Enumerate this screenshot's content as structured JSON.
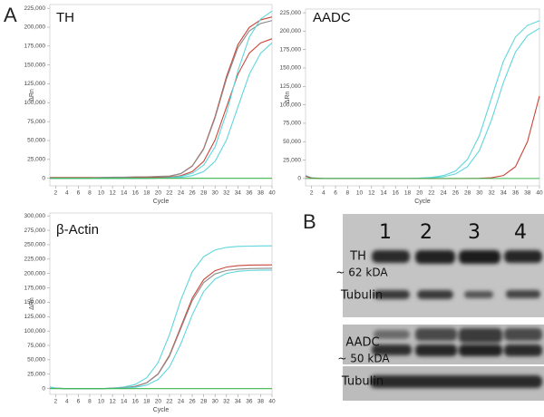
{
  "chart_data": [
    {
      "type": "line",
      "title": "TH",
      "xlabel": "Cycle",
      "ylabel": "ΔRn",
      "grid": false,
      "x": [
        1,
        2,
        4,
        6,
        8,
        10,
        12,
        14,
        16,
        18,
        20,
        22,
        24,
        26,
        28,
        30,
        32,
        34,
        36,
        38,
        40
      ],
      "xlim": [
        1,
        40
      ],
      "xticks": [
        2,
        4,
        6,
        8,
        10,
        12,
        14,
        16,
        18,
        20,
        22,
        24,
        26,
        28,
        30,
        32,
        34,
        36,
        38,
        40
      ],
      "ylim": [
        -10000,
        230000
      ],
      "yticks": [
        0,
        {
          "value": 25000,
          "label": "25,000"
        },
        {
          "value": 50000,
          "label": "50,000"
        },
        {
          "value": 75000,
          "label": "75,000"
        },
        {
          "value": 100000,
          "label": "100,000"
        },
        {
          "value": 125000,
          "label": "125,000"
        },
        {
          "value": 150000,
          "label": "150,000"
        },
        {
          "value": 175000,
          "label": "175,000"
        },
        {
          "value": 200000,
          "label": "200,000"
        },
        {
          "value": 225000,
          "label": "225,000"
        }
      ],
      "series": [
        {
          "color": "#c8473a",
          "values": [
            1000,
            1000,
            1000,
            1000,
            1000,
            1000,
            1000,
            1000,
            1000,
            1000,
            1500,
            2400,
            6300,
            16400,
            39300,
            81600,
            134400,
            176700,
            199600,
            209700,
            213600
          ]
        },
        {
          "color": "#8c8c8c",
          "values": [
            500,
            500,
            500,
            500,
            500,
            1000,
            1500,
            1500,
            2000,
            2000,
            2500,
            3000,
            6100,
            16000,
            38400,
            79800,
            131200,
            172600,
            195000,
            204900,
            208700
          ]
        },
        {
          "color": "#c8473a",
          "values": [
            0,
            0,
            0,
            0,
            0,
            0,
            0,
            0,
            0,
            0,
            500,
            1300,
            3400,
            8800,
            22400,
            50600,
            94000,
            137400,
            165600,
            179200,
            184600
          ]
        },
        {
          "color": "#5fd6dc",
          "values": [
            0,
            0,
            0,
            0,
            0,
            0,
            0,
            0,
            0,
            0,
            300,
            900,
            2500,
            6600,
            17300,
            41500,
            86200,
            141800,
            186500,
            210700,
            221400
          ]
        },
        {
          "color": "#5fd6dc",
          "values": [
            0,
            0,
            0,
            0,
            0,
            0,
            0,
            0,
            0,
            0,
            200,
            500,
            1300,
            3400,
            8800,
            22400,
            50600,
            94000,
            137400,
            165600,
            179200
          ]
        },
        {
          "color": "#3cb44b",
          "values": [
            0,
            0,
            0,
            0,
            0,
            0,
            0,
            0,
            0,
            0,
            0,
            0,
            0,
            0,
            0,
            0,
            0,
            0,
            0,
            0,
            0
          ]
        }
      ]
    },
    {
      "type": "line",
      "title": "AADC",
      "xlabel": "Cycle",
      "ylabel": "ΔRn",
      "grid": false,
      "x": [
        1,
        2,
        4,
        6,
        8,
        10,
        12,
        14,
        16,
        18,
        20,
        22,
        24,
        26,
        28,
        30,
        32,
        34,
        36,
        38,
        40
      ],
      "xlim": [
        1,
        40
      ],
      "xticks": [
        2,
        4,
        6,
        8,
        10,
        12,
        14,
        16,
        18,
        20,
        22,
        24,
        26,
        28,
        30,
        32,
        34,
        36,
        38,
        40
      ],
      "ylim": [
        -10000,
        230000
      ],
      "yticks": [
        0,
        {
          "value": 25000,
          "label": "25,000"
        },
        {
          "value": 50000,
          "label": "50,000"
        },
        {
          "value": 75000,
          "label": "75,000"
        },
        {
          "value": 100000,
          "label": "100,000"
        },
        {
          "value": 125000,
          "label": "125,000"
        },
        {
          "value": 150000,
          "label": "150,000"
        },
        {
          "value": 175000,
          "label": "175,000"
        },
        {
          "value": 200000,
          "label": "200,000"
        },
        {
          "value": 225000,
          "label": "225,000"
        }
      ],
      "series": [
        {
          "color": "#5fd6dc",
          "values": [
            4000,
            1000,
            0,
            0,
            0,
            0,
            0,
            0,
            0,
            0,
            500,
            1500,
            3900,
            10200,
            25900,
            58600,
            109000,
            159400,
            192100,
            207800,
            214100
          ]
        },
        {
          "color": "#5fd6dc",
          "values": [
            3000,
            500,
            0,
            0,
            0,
            0,
            0,
            0,
            0,
            0,
            300,
            800,
            2300,
            6100,
            16000,
            38200,
            79400,
            130600,
            171800,
            194000,
            203900
          ]
        },
        {
          "color": "#c8473a",
          "values": [
            3000,
            500,
            0,
            0,
            0,
            0,
            0,
            0,
            0,
            0,
            0,
            0,
            0,
            0,
            0,
            300,
            1000,
            4000,
            16000,
            50000,
            112000
          ]
        },
        {
          "color": "#3cb44b",
          "values": [
            0,
            0,
            0,
            0,
            0,
            0,
            0,
            0,
            0,
            0,
            0,
            0,
            0,
            0,
            0,
            0,
            0,
            0,
            0,
            0,
            0
          ]
        }
      ]
    },
    {
      "type": "line",
      "title": "β-Actin",
      "xlabel": "Cycle",
      "ylabel": "ΔRn",
      "grid": false,
      "x": [
        1,
        2,
        4,
        6,
        8,
        10,
        12,
        14,
        16,
        18,
        20,
        22,
        24,
        26,
        28,
        30,
        32,
        34,
        36,
        38,
        40
      ],
      "xlim": [
        1,
        40
      ],
      "xticks": [
        2,
        4,
        6,
        8,
        10,
        12,
        14,
        16,
        18,
        20,
        22,
        24,
        26,
        28,
        30,
        32,
        34,
        36,
        38,
        40
      ],
      "ylim": [
        -10000,
        305000
      ],
      "yticks": [
        0,
        {
          "value": 25000,
          "label": "25,000"
        },
        {
          "value": 50000,
          "label": "50,000"
        },
        {
          "value": 75000,
          "label": "75,000"
        },
        {
          "value": 100000,
          "label": "100,000"
        },
        {
          "value": 125000,
          "label": "125,000"
        },
        {
          "value": 150000,
          "label": "150,000"
        },
        {
          "value": 175000,
          "label": "175,000"
        },
        {
          "value": 200000,
          "label": "200,000"
        },
        {
          "value": 225000,
          "label": "225,000"
        },
        {
          "value": 250000,
          "label": "250,000"
        },
        {
          "value": 275000,
          "label": "275,000"
        },
        {
          "value": 300000,
          "label": "300,000"
        }
      ],
      "series": [
        {
          "color": "#5fd6dc",
          "values": [
            3000,
            1000,
            0,
            0,
            0,
            0,
            1000,
            2700,
            7200,
            18800,
            45100,
            93700,
            154300,
            202900,
            229200,
            240800,
            245300,
            247000,
            247500,
            247800,
            248000
          ]
        },
        {
          "color": "#c8473a",
          "values": [
            1000,
            500,
            0,
            0,
            0,
            0,
            500,
            1400,
            3900,
            10100,
            25600,
            57800,
            107500,
            157200,
            189400,
            204900,
            211100,
            213500,
            214500,
            214800,
            215000
          ]
        },
        {
          "color": "#8c8c8c",
          "values": [
            1000,
            500,
            0,
            0,
            0,
            0,
            500,
            1400,
            3800,
            9800,
            24900,
            56200,
            104500,
            152800,
            184100,
            199200,
            205200,
            207500,
            208500,
            208800,
            209000
          ]
        },
        {
          "color": "#5fd6dc",
          "values": [
            1000,
            500,
            0,
            0,
            0,
            0,
            300,
            800,
            2300,
            6000,
            15700,
            37500,
            77900,
            128100,
            168500,
            190300,
            200000,
            203700,
            205200,
            205600,
            205800
          ]
        },
        {
          "color": "#3cb44b",
          "values": [
            0,
            0,
            0,
            0,
            0,
            0,
            0,
            0,
            0,
            0,
            0,
            0,
            0,
            0,
            0,
            0,
            0,
            0,
            0,
            0,
            0
          ]
        }
      ]
    }
  ],
  "figure": {
    "panel_labels": [
      "A",
      "B"
    ],
    "blot": {
      "lanes": [
        "1",
        "2",
        "3",
        "4"
      ],
      "rows": [
        "TH",
        "~ 62 kDA",
        "Tubulin",
        "AADC",
        "~ 50 kDA",
        "Tubulin"
      ]
    }
  }
}
